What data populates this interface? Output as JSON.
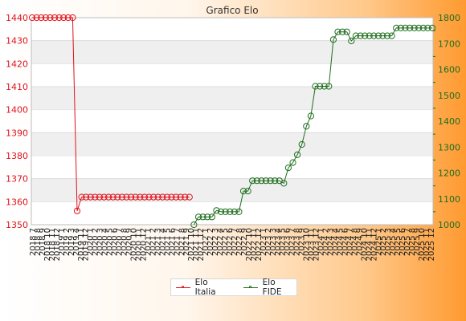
{
  "chart_data": {
    "type": "line",
    "title": "Grafico Elo",
    "x": [
      "2018 7",
      "2018 8",
      "2018 9",
      "2018 10",
      "2018 11",
      "2018 12",
      "2019 1",
      "2019 2",
      "2019 3",
      "2019 4",
      "2019 5",
      "2019 6",
      "2019 7",
      "2019 8",
      "2019 9",
      "2019 10",
      "2019 11",
      "2019 12",
      "2020 1",
      "2020 2",
      "2020 3",
      "2020 4",
      "2020 5",
      "2020 6",
      "2020 7",
      "2020 8",
      "2020 9",
      "2020 10",
      "2020 11",
      "2020 12",
      "2021 1",
      "2021 2",
      "2021 3",
      "2021 4",
      "2021 5",
      "2021 6",
      "2021 7",
      "2021 8",
      "2021 9",
      "2021 10",
      "2021 11",
      "2021 12",
      "2022 1",
      "2022 2",
      "2022 3",
      "2022 4",
      "2022 5",
      "2022 6",
      "2022 7",
      "2022 8",
      "2022 9",
      "2022 10",
      "2022 11",
      "2022 12",
      "2023 1",
      "2023 2",
      "2023 3",
      "2023 4",
      "2023 5",
      "2023 6",
      "2023 7",
      "2023 8",
      "2023 9",
      "2023 10",
      "2023 11",
      "2023 12",
      "2024 1",
      "2024 2",
      "2024 3",
      "2024 4",
      "2024 5",
      "2024 6",
      "2024 7",
      "2024 8",
      "2024 9",
      "2024 10",
      "2024 11",
      "2024 12",
      "2025 1",
      "2025 2",
      "2025 3",
      "2025 4",
      "2025 5",
      "2025 6",
      "2025 7",
      "2025 8",
      "2025 9",
      "2025 10",
      "2025 11",
      "2025 12"
    ],
    "x_tick_labels": [
      "2018 7",
      "2018 8",
      "2018 9",
      "2018 10",
      "2018 11",
      "2018 12",
      "2019 1",
      "2019 2",
      "2019 3",
      "2019 4",
      "2019 11",
      "2019 12",
      "2020 1",
      "2020 2",
      "2020 3",
      "2020 4",
      "2020 5",
      "2020 6",
      "2020 7",
      "2020 8",
      "2020 9",
      "2020 10",
      "2020 11",
      "2020 12",
      "2021 1",
      "2021 2",
      "2021 3",
      "2021 4",
      "2021 5",
      "2021 6",
      "2021 7",
      "2021 8",
      "2021 9",
      "2021 10",
      "2021 11",
      "2021 12",
      "2022 1",
      "2022 2",
      "2022 3",
      "2022 4",
      "2022 5",
      "2022 6",
      "2022 7",
      "2022 8",
      "2022 9",
      "2022 10",
      "2022 11",
      "2022 12",
      "2023 1",
      "2023 2",
      "2023 3",
      "2023 4",
      "2023 5",
      "2023 6",
      "2023 7",
      "2023 8",
      "2023 9",
      "2023 10",
      "2023 11",
      "2023 12",
      "2024 1",
      "2024 2",
      "2024 3",
      "2024 4",
      "2024 5",
      "2024 6",
      "2024 7",
      "2024 8",
      "2024 9",
      "2024 10",
      "2024 11",
      "2024 12",
      "2025 1",
      "2025 2",
      "2025 3",
      "2025 4",
      "2025 5",
      "2025 6",
      "2025 7",
      "2025 8",
      "2025 9",
      "2025 10",
      "2025 11",
      "2025 12"
    ],
    "series": [
      {
        "name": "Elo Italia",
        "axis": "left",
        "color": "#e0121b",
        "values": [
          1440,
          1440,
          1440,
          1440,
          1440,
          1440,
          1440,
          1440,
          1440,
          1440,
          1356,
          1362,
          1362,
          1362,
          1362,
          1362,
          1362,
          1362,
          1362,
          1362,
          1362,
          1362,
          1362,
          1362,
          1362,
          1362,
          1362,
          1362,
          1362,
          1362,
          1362,
          1362,
          1362,
          1362,
          1362,
          1362,
          null,
          null,
          null,
          null,
          null,
          null,
          null,
          null,
          null,
          null,
          null,
          null,
          null,
          null,
          null,
          null,
          null,
          null,
          null,
          null,
          null,
          null,
          null,
          null,
          null,
          null,
          null,
          null,
          null,
          null,
          null,
          null,
          null,
          null,
          null,
          null,
          null,
          null,
          null,
          null,
          null,
          null,
          null,
          null,
          null,
          null,
          null,
          null,
          null,
          null,
          null,
          null,
          null,
          null
        ]
      },
      {
        "name": "Elo FIDE",
        "axis": "right",
        "color": "#1e6e1e",
        "values": [
          null,
          null,
          null,
          null,
          null,
          null,
          null,
          null,
          null,
          null,
          null,
          null,
          null,
          null,
          null,
          null,
          null,
          null,
          null,
          null,
          null,
          null,
          null,
          null,
          null,
          null,
          null,
          null,
          null,
          null,
          null,
          null,
          null,
          null,
          null,
          null,
          1000,
          1030,
          1030,
          1030,
          1030,
          1055,
          1050,
          1050,
          1050,
          1050,
          1050,
          1130,
          1130,
          1170,
          1170,
          1170,
          1170,
          1170,
          1170,
          1170,
          1160,
          1220,
          1240,
          1270,
          1310,
          1380,
          1420,
          1535,
          1535,
          1535,
          1535,
          1715,
          1745,
          1745,
          1745,
          1710,
          1730,
          1730,
          1730,
          1730,
          1730,
          1730,
          1730,
          1730,
          1730,
          1760,
          1760,
          1760,
          1760,
          1760,
          1760,
          1760,
          1760,
          1760
        ]
      }
    ],
    "y_left": {
      "min": 1350,
      "max": 1440,
      "ticks": [
        1350,
        1360,
        1370,
        1380,
        1390,
        1400,
        1410,
        1420,
        1430,
        1440
      ]
    },
    "y_right": {
      "min": 1000,
      "max": 1800,
      "ticks": [
        1000,
        1100,
        1200,
        1300,
        1400,
        1500,
        1600,
        1700,
        1800
      ]
    },
    "grid": true,
    "legend": "bottom-center"
  },
  "colors": {
    "italia": "#e0121b",
    "fide": "#1e6e1e",
    "band": "#efefef",
    "gridline": "#dcdcdc"
  }
}
